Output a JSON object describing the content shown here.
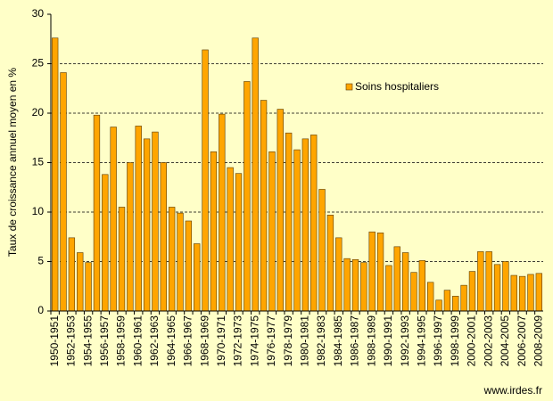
{
  "chart_data": {
    "type": "bar",
    "y_label": "Taux de croissance annuel moyen en %",
    "categories": [
      "1950-1951",
      null,
      "1952-1953",
      null,
      "1954-1955",
      null,
      "1956-1957",
      null,
      "1958-1959",
      null,
      "1960-1961",
      null,
      "1962-1963",
      null,
      "1964-1965",
      null,
      "1966-1967",
      null,
      "1968-1969",
      null,
      "1970-1971",
      null,
      "1972-1973",
      null,
      "1974-1975",
      null,
      "1976-1977",
      null,
      "1978-1979",
      null,
      "1980-1981",
      null,
      "1982-1983",
      null,
      "1984-1985",
      null,
      "1986-1987",
      null,
      "1988-1989",
      null,
      "1990-1991",
      null,
      "1992-1993",
      null,
      "1994-1995",
      null,
      "1996-1997",
      null,
      "1998-1999",
      null,
      "2000-2001",
      null,
      "2002-2003",
      null,
      "2004-2005",
      null,
      "2006-2007",
      null,
      "2008-2009"
    ],
    "series": [
      {
        "name": "Soins hospitaliers",
        "color": "#ffa500",
        "values": [
          27.6,
          24.1,
          7.4,
          5.9,
          4.9,
          19.8,
          13.8,
          18.6,
          10.5,
          15.0,
          18.7,
          17.4,
          18.1,
          15.0,
          10.5,
          9.9,
          9.1,
          6.8,
          26.4,
          16.1,
          19.9,
          14.5,
          13.9,
          23.2,
          27.6,
          21.3,
          16.1,
          20.4,
          18.0,
          16.3,
          17.4,
          17.8,
          12.3,
          9.7,
          7.4,
          5.3,
          5.2,
          4.9,
          8.0,
          7.9,
          4.6,
          6.5,
          5.9,
          3.9,
          5.1,
          2.9,
          1.1,
          2.1,
          1.5,
          2.6,
          4.0,
          6.0,
          6.0,
          4.7,
          5.0,
          3.6,
          3.5,
          3.7,
          3.8
        ]
      }
    ],
    "ylim": [
      0,
      30
    ],
    "yticks": [
      0,
      5,
      10,
      15,
      20,
      25,
      30
    ],
    "grid": true,
    "legend": "upper right"
  },
  "footer": "www.irdes.fr"
}
